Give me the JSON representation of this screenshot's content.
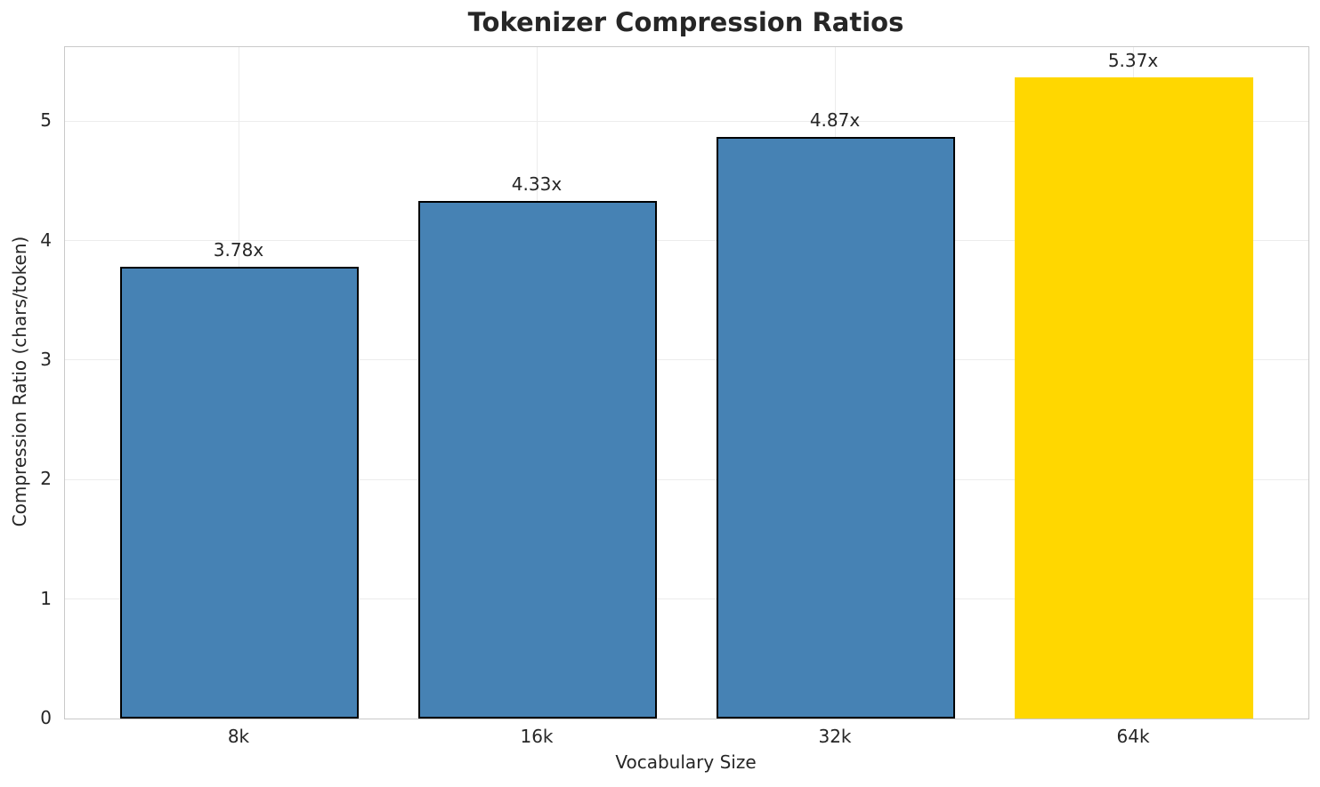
{
  "chart_data": {
    "type": "bar",
    "title": "Tokenizer Compression Ratios",
    "xlabel": "Vocabulary Size",
    "ylabel": "Compression Ratio (chars/token)",
    "categories": [
      "8k",
      "16k",
      "32k",
      "64k"
    ],
    "values": [
      3.78,
      4.33,
      4.87,
      5.37
    ],
    "bar_labels": [
      "3.78x",
      "4.33x",
      "4.87x",
      "5.37x"
    ],
    "bar_colors": [
      "#4682B4",
      "#4682B4",
      "#4682B4",
      "#FFD700"
    ],
    "bar_edge_colors": [
      "#000000",
      "#000000",
      "#000000",
      "none"
    ],
    "yticks": [
      0,
      1,
      2,
      3,
      4,
      5
    ],
    "ylim": [
      0,
      5.62
    ],
    "bar_width_fraction": 0.8,
    "grid": true,
    "legend_position": "none",
    "highlighted_category": "64k"
  },
  "colors": {
    "default_bar": "#4682B4",
    "highlight_bar": "#FFD700",
    "bar_edge": "#000000",
    "grid": "#ECECEC",
    "spine": "#C9C9C9",
    "text": "#262626",
    "background": "#FFFFFF"
  }
}
